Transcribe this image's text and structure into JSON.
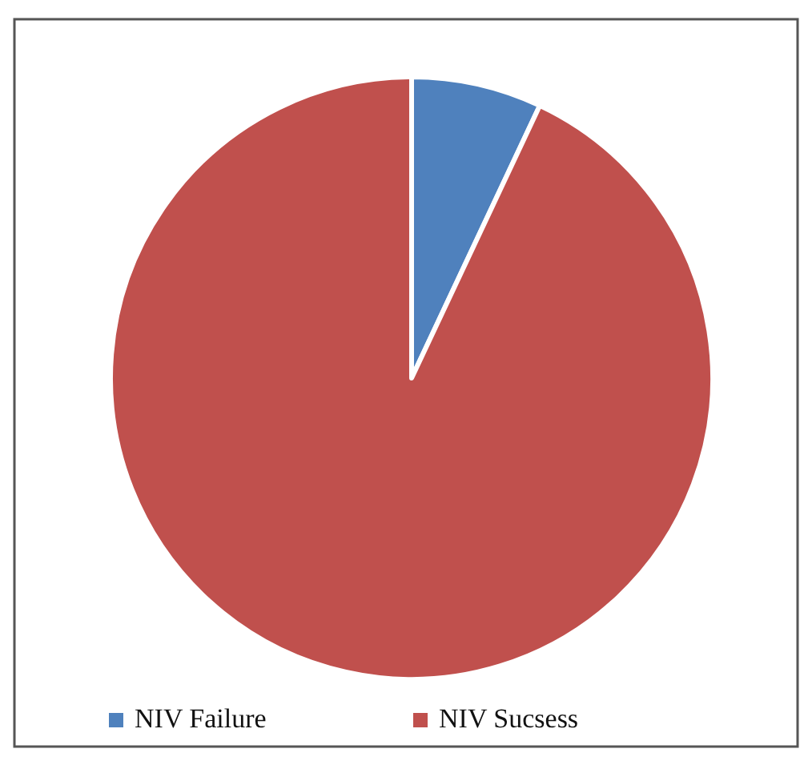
{
  "chart_data": {
    "type": "pie",
    "categories": [
      "NIV Failure",
      "NIV Sucsess"
    ],
    "values": [
      7,
      93
    ],
    "colors": [
      "#4f81bd",
      "#c0504d"
    ],
    "legend": "bottom"
  }
}
